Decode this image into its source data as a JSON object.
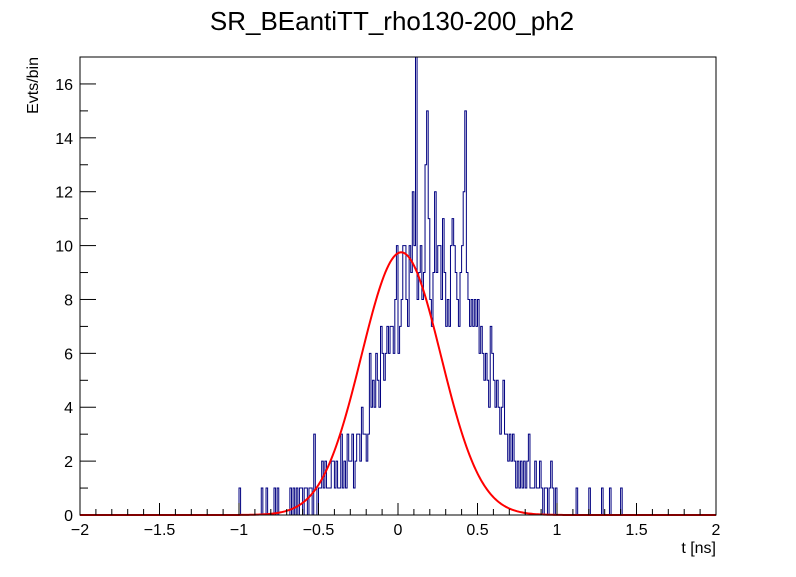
{
  "chart_data": {
    "type": "histogram",
    "title": "SR_BEantiTT_rho130-200_ph2",
    "xlabel": "t [ns]",
    "ylabel": "Evts/bin",
    "xlim": [
      -2,
      2
    ],
    "ylim": [
      0,
      17
    ],
    "x_ticks": [
      -2,
      -1.5,
      -1,
      -0.5,
      0,
      0.5,
      1,
      1.5,
      2
    ],
    "x_tick_labels": [
      "−2",
      "−1.5",
      "−1",
      "−0.5",
      "0",
      "0.5",
      "1",
      "1.5",
      "2"
    ],
    "y_ticks": [
      0,
      2,
      4,
      6,
      8,
      10,
      12,
      14,
      16
    ],
    "y_tick_labels": [
      "0",
      "2",
      "4",
      "6",
      "8",
      "10",
      "12",
      "14",
      "16"
    ],
    "grid": false,
    "legend": "none",
    "histogram": {
      "bin_width": 0.01,
      "x_start": -2.0,
      "color": "#000080",
      "bins": [
        [
          -1.0,
          1
        ],
        [
          -0.86,
          1
        ],
        [
          -0.83,
          1
        ],
        [
          -0.78,
          1
        ],
        [
          -0.76,
          1
        ],
        [
          -0.68,
          1
        ],
        [
          -0.66,
          1
        ],
        [
          -0.64,
          1
        ],
        [
          -0.62,
          1
        ],
        [
          -0.61,
          1
        ],
        [
          -0.59,
          1
        ],
        [
          -0.58,
          1
        ],
        [
          -0.56,
          1
        ],
        [
          -0.55,
          1
        ],
        [
          -0.53,
          3
        ],
        [
          -0.52,
          1
        ],
        [
          -0.5,
          1
        ],
        [
          -0.49,
          1
        ],
        [
          -0.48,
          2
        ],
        [
          -0.47,
          1
        ],
        [
          -0.46,
          2
        ],
        [
          -0.45,
          1
        ],
        [
          -0.44,
          1
        ],
        [
          -0.43,
          1
        ],
        [
          -0.42,
          2
        ],
        [
          -0.41,
          2
        ],
        [
          -0.4,
          1
        ],
        [
          -0.39,
          2
        ],
        [
          -0.38,
          1
        ],
        [
          -0.37,
          1
        ],
        [
          -0.36,
          3
        ],
        [
          -0.35,
          1
        ],
        [
          -0.34,
          2
        ],
        [
          -0.33,
          1
        ],
        [
          -0.32,
          3
        ],
        [
          -0.31,
          2
        ],
        [
          -0.3,
          2
        ],
        [
          -0.29,
          3
        ],
        [
          -0.28,
          1
        ],
        [
          -0.27,
          2
        ],
        [
          -0.26,
          3
        ],
        [
          -0.25,
          3
        ],
        [
          -0.24,
          2
        ],
        [
          -0.23,
          4
        ],
        [
          -0.22,
          3
        ],
        [
          -0.21,
          3
        ],
        [
          -0.2,
          2
        ],
        [
          -0.19,
          3
        ],
        [
          -0.18,
          6
        ],
        [
          -0.17,
          4
        ],
        [
          -0.16,
          5
        ],
        [
          -0.15,
          4
        ],
        [
          -0.14,
          6
        ],
        [
          -0.13,
          5
        ],
        [
          -0.12,
          4
        ],
        [
          -0.11,
          7
        ],
        [
          -0.1,
          6
        ],
        [
          -0.09,
          5
        ],
        [
          -0.08,
          6
        ],
        [
          -0.07,
          7
        ],
        [
          -0.06,
          6
        ],
        [
          -0.05,
          7
        ],
        [
          -0.04,
          7
        ],
        [
          -0.03,
          6
        ],
        [
          -0.02,
          8
        ],
        [
          -0.01,
          10
        ],
        [
          0.0,
          6
        ],
        [
          0.01,
          7
        ],
        [
          0.02,
          8
        ],
        [
          0.03,
          10
        ],
        [
          0.04,
          10
        ],
        [
          0.05,
          8
        ],
        [
          0.06,
          7
        ],
        [
          0.07,
          10
        ],
        [
          0.08,
          9
        ],
        [
          0.09,
          12
        ],
        [
          0.1,
          10
        ],
        [
          0.11,
          17
        ],
        [
          0.12,
          8
        ],
        [
          0.13,
          9
        ],
        [
          0.14,
          10
        ],
        [
          0.15,
          8
        ],
        [
          0.16,
          9
        ],
        [
          0.17,
          13
        ],
        [
          0.18,
          15
        ],
        [
          0.19,
          11
        ],
        [
          0.2,
          8
        ],
        [
          0.21,
          7
        ],
        [
          0.22,
          9
        ],
        [
          0.23,
          12
        ],
        [
          0.24,
          9
        ],
        [
          0.25,
          10
        ],
        [
          0.26,
          10
        ],
        [
          0.27,
          8
        ],
        [
          0.28,
          11
        ],
        [
          0.29,
          9
        ],
        [
          0.3,
          7
        ],
        [
          0.31,
          8
        ],
        [
          0.32,
          7
        ],
        [
          0.33,
          10
        ],
        [
          0.34,
          11
        ],
        [
          0.35,
          10
        ],
        [
          0.36,
          9
        ],
        [
          0.37,
          8
        ],
        [
          0.38,
          7
        ],
        [
          0.39,
          9
        ],
        [
          0.4,
          10
        ],
        [
          0.41,
          12
        ],
        [
          0.42,
          15
        ],
        [
          0.43,
          9
        ],
        [
          0.44,
          8
        ],
        [
          0.45,
          7
        ],
        [
          0.46,
          8
        ],
        [
          0.47,
          7
        ],
        [
          0.48,
          8
        ],
        [
          0.49,
          7
        ],
        [
          0.5,
          8
        ],
        [
          0.51,
          6
        ],
        [
          0.52,
          7
        ],
        [
          0.53,
          6
        ],
        [
          0.54,
          5
        ],
        [
          0.55,
          6
        ],
        [
          0.56,
          5
        ],
        [
          0.57,
          4
        ],
        [
          0.58,
          7
        ],
        [
          0.59,
          6
        ],
        [
          0.6,
          5
        ],
        [
          0.61,
          4
        ],
        [
          0.62,
          5
        ],
        [
          0.63,
          4
        ],
        [
          0.64,
          3
        ],
        [
          0.65,
          4
        ],
        [
          0.66,
          5
        ],
        [
          0.67,
          3
        ],
        [
          0.68,
          3
        ],
        [
          0.69,
          2
        ],
        [
          0.7,
          3
        ],
        [
          0.71,
          2
        ],
        [
          0.72,
          3
        ],
        [
          0.73,
          2
        ],
        [
          0.74,
          1
        ],
        [
          0.75,
          2
        ],
        [
          0.76,
          1
        ],
        [
          0.77,
          2
        ],
        [
          0.78,
          1
        ],
        [
          0.79,
          2
        ],
        [
          0.8,
          1
        ],
        [
          0.81,
          2
        ],
        [
          0.82,
          3
        ],
        [
          0.83,
          1
        ],
        [
          0.84,
          1
        ],
        [
          0.85,
          1
        ],
        [
          0.86,
          2
        ],
        [
          0.87,
          1
        ],
        [
          0.88,
          1
        ],
        [
          0.89,
          2
        ],
        [
          0.9,
          1
        ],
        [
          0.92,
          1
        ],
        [
          0.93,
          1
        ],
        [
          0.95,
          1
        ],
        [
          0.96,
          2
        ],
        [
          0.97,
          1
        ],
        [
          0.99,
          1
        ],
        [
          1.12,
          1
        ],
        [
          1.2,
          1
        ],
        [
          1.28,
          1
        ],
        [
          1.33,
          1
        ],
        [
          1.4,
          1
        ]
      ]
    },
    "fit": {
      "type": "gaussian",
      "color": "#ff0000",
      "amplitude": 9.75,
      "mean": 0.02,
      "sigma": 0.25
    }
  }
}
